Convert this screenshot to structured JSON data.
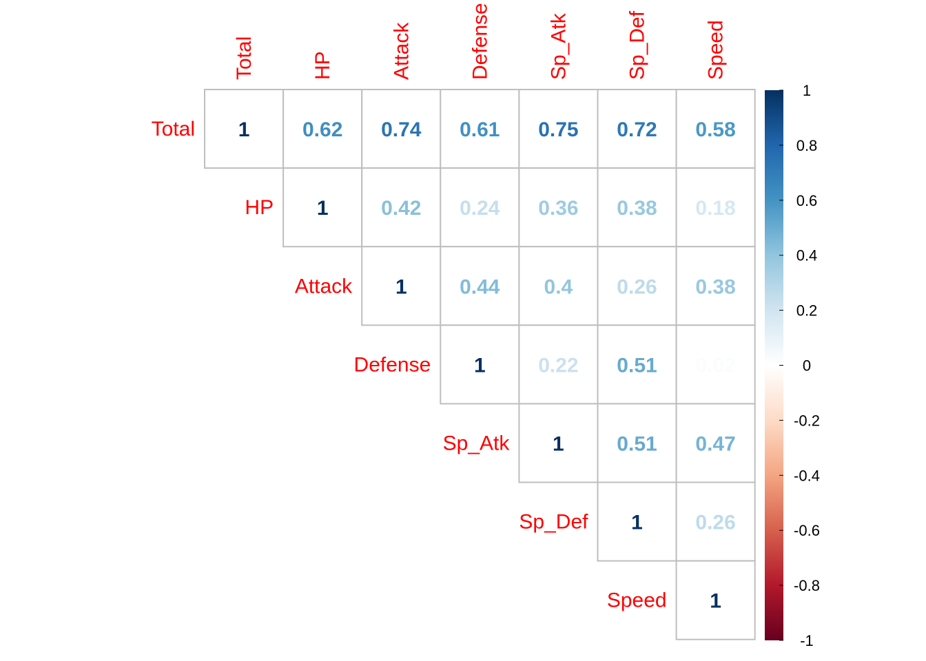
{
  "chart_data": {
    "type": "heatmap",
    "variables": [
      "Total",
      "HP",
      "Attack",
      "Defense",
      "Sp_Atk",
      "Sp_Def",
      "Speed"
    ],
    "values": [
      [
        1,
        0.62,
        0.74,
        0.61,
        0.75,
        0.72,
        0.58
      ],
      [
        null,
        1,
        0.42,
        0.24,
        0.36,
        0.38,
        0.18
      ],
      [
        null,
        null,
        1,
        0.44,
        0.4,
        0.26,
        0.38
      ],
      [
        null,
        null,
        null,
        1,
        0.22,
        0.51,
        0.02
      ],
      [
        null,
        null,
        null,
        null,
        1,
        0.51,
        0.47
      ],
      [
        null,
        null,
        null,
        null,
        null,
        1,
        0.26
      ],
      [
        null,
        null,
        null,
        null,
        null,
        null,
        1
      ]
    ],
    "value_labels": [
      [
        "1",
        "0.62",
        "0.74",
        "0.61",
        "0.75",
        "0.72",
        "0.58"
      ],
      [
        null,
        "1",
        "0.42",
        "0.24",
        "0.36",
        "0.38",
        "0.18"
      ],
      [
        null,
        null,
        "1",
        "0.44",
        "0.4",
        "0.26",
        "0.38"
      ],
      [
        null,
        null,
        null,
        "1",
        "0.22",
        "0.51",
        "0.02"
      ],
      [
        null,
        null,
        null,
        null,
        "1",
        "0.51",
        "0.47"
      ],
      [
        null,
        null,
        null,
        null,
        null,
        "1",
        "0.26"
      ],
      [
        null,
        null,
        null,
        null,
        null,
        null,
        "1"
      ]
    ],
    "triangle": "upper",
    "label_color": "#ff0000",
    "colorbar": {
      "range": [
        -1,
        1
      ],
      "ticks": [
        "1",
        "0.8",
        "0.6",
        "0.4",
        "0.2",
        "0",
        "-0.2",
        "-0.4",
        "-0.6",
        "-0.8",
        "-1"
      ],
      "tick_values": [
        1,
        0.8,
        0.6,
        0.4,
        0.2,
        0,
        -0.2,
        -0.4,
        -0.6,
        -0.8,
        -1
      ],
      "placement": "right",
      "colors": [
        "#67001f",
        "#b2182b",
        "#d6604d",
        "#f4a582",
        "#fddbc7",
        "#ffffff",
        "#d1e5f0",
        "#92c5de",
        "#4393c3",
        "#2166ac",
        "#053061"
      ]
    }
  }
}
